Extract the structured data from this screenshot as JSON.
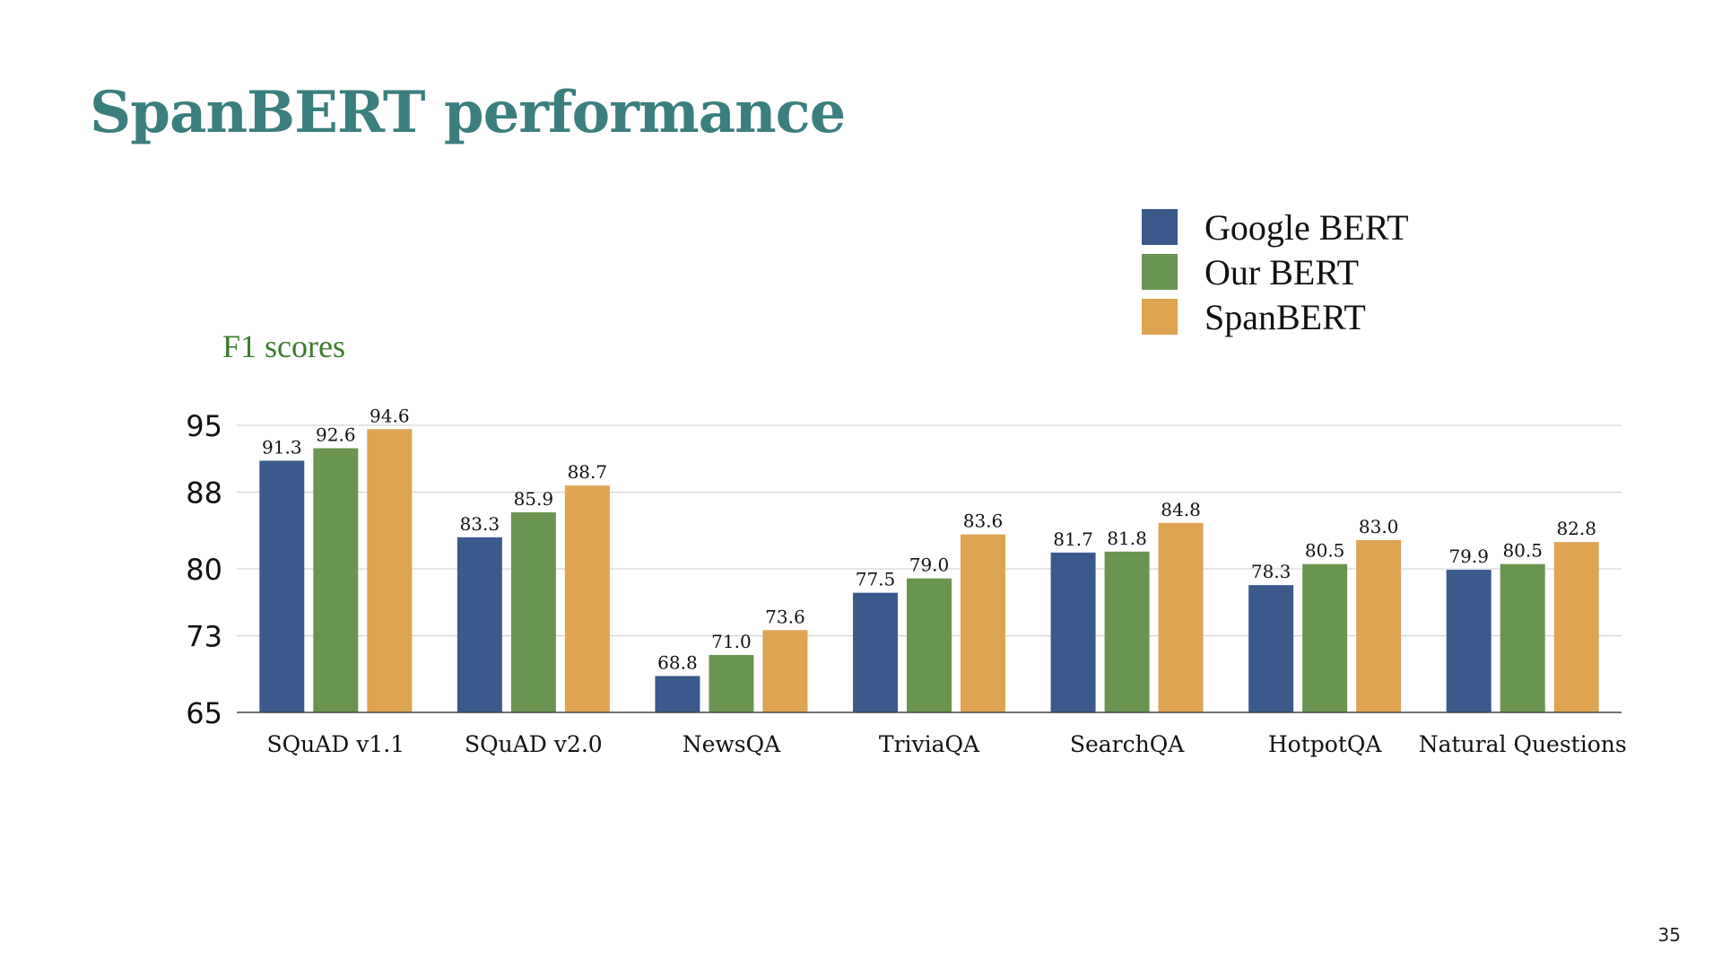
{
  "slide": {
    "title": "SpanBERT performance",
    "page_number": "35"
  },
  "chart_data": {
    "type": "bar",
    "title": "",
    "ylabel": "F1 scores",
    "xlabel": "",
    "ylim": [
      65,
      95
    ],
    "yticks": [
      "65",
      "73",
      "80",
      "88",
      "95"
    ],
    "grid": true,
    "legend_position": "top-right",
    "categories": [
      "SQuAD v1.1",
      "SQuAD v2.0",
      "NewsQA",
      "TriviaQA",
      "SearchQA",
      "HotpotQA",
      "Natural Questions"
    ],
    "series": [
      {
        "name": "Google BERT",
        "color": "#3a5a8c",
        "values": [
          91.3,
          83.3,
          68.8,
          77.5,
          81.7,
          78.3,
          79.9
        ],
        "labels": [
          "91.3",
          "83.3",
          "68.8",
          "77.5",
          "81.7",
          "78.3",
          "79.9"
        ]
      },
      {
        "name": "Our BERT",
        "color": "#6a9550",
        "values": [
          92.6,
          85.9,
          71.0,
          79.0,
          81.8,
          80.5,
          80.5
        ],
        "labels": [
          "92.6",
          "85.9",
          "71.0",
          "79.0",
          "81.8",
          "80.5",
          "80.5"
        ]
      },
      {
        "name": "SpanBERT",
        "color": "#dea452",
        "values": [
          94.6,
          88.7,
          73.6,
          83.6,
          84.8,
          83.0,
          82.8
        ],
        "labels": [
          "94.6",
          "88.7",
          "73.6",
          "83.6",
          "84.8",
          "83.0",
          "82.8"
        ]
      }
    ]
  },
  "colors": {
    "title": "#3a7f7d",
    "ylabel": "#3f7a2f",
    "grid": "#cccccc",
    "axis": "#444444"
  }
}
